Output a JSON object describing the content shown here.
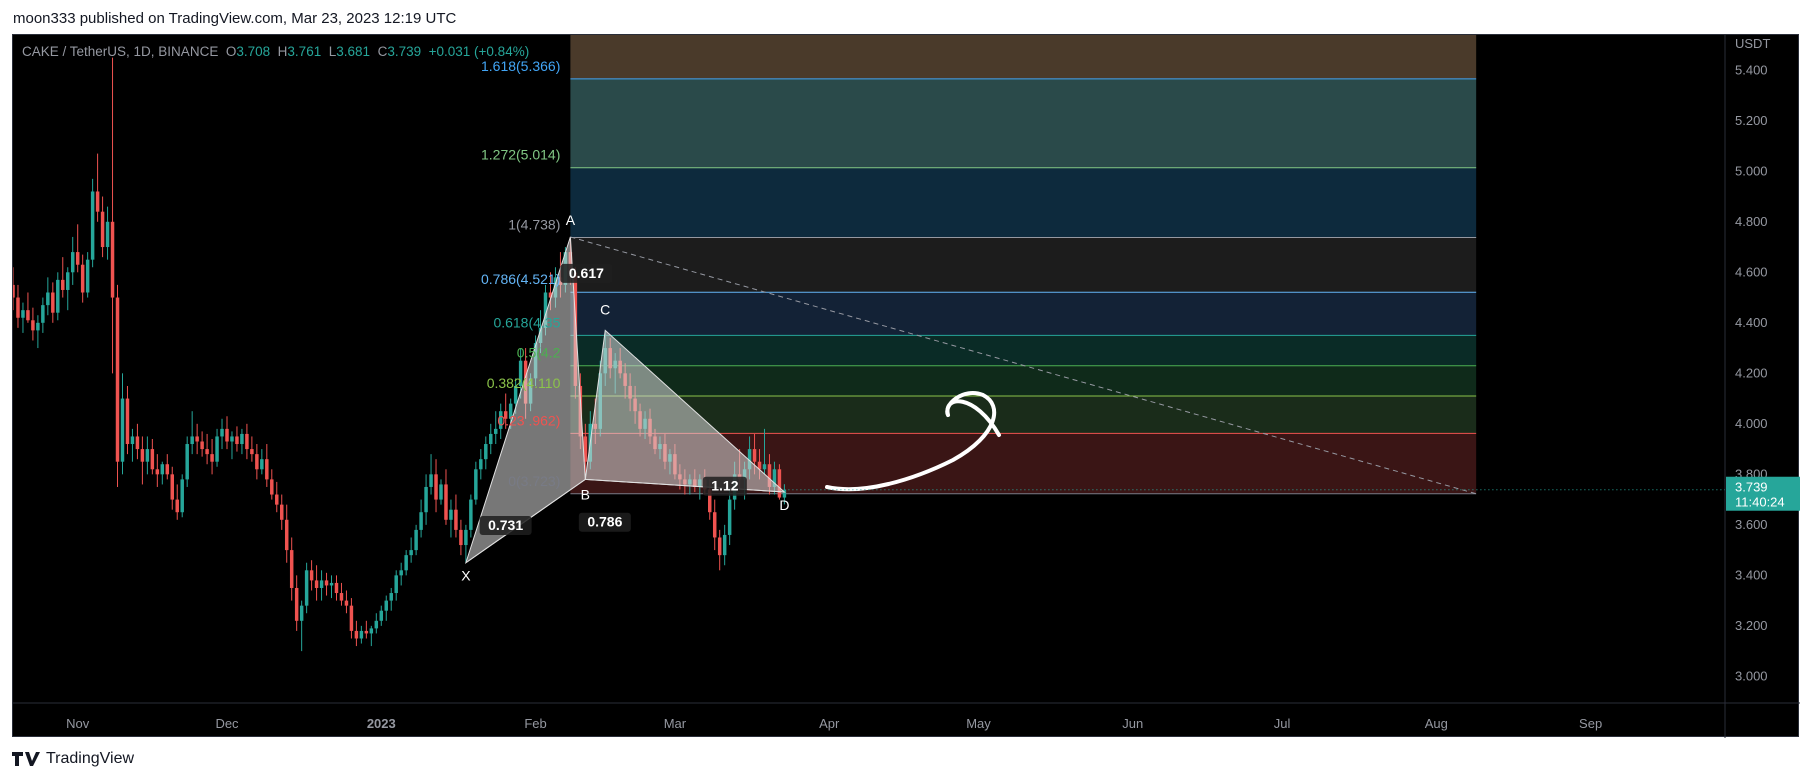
{
  "header": {
    "published": "moon333 published on TradingView.com, Mar 23, 2023 12:19 UTC"
  },
  "footer": {
    "brand": "TradingView"
  },
  "legend": {
    "symbol": "CAKE / TetherUS, 1D, BINANCE",
    "o_label": "O",
    "o": "3.708",
    "h_label": "H",
    "h": "3.761",
    "l_label": "L",
    "l": "3.681",
    "c_label": "C",
    "c": "3.739",
    "change": "+0.031 (+0.84%)"
  },
  "price_axis": {
    "currency": "USDT",
    "ticks": [
      "5.400",
      "5.200",
      "5.000",
      "4.800",
      "4.600",
      "4.400",
      "4.200",
      "4.000",
      "3.800",
      "3.600",
      "3.400",
      "3.200",
      "3.000"
    ],
    "last_price": "3.739",
    "countdown": "11:40:24"
  },
  "time_axis": {
    "ticks": [
      "Nov",
      "Dec",
      "2023",
      "Feb",
      "Mar",
      "Apr",
      "May",
      "Jun",
      "Jul",
      "Aug",
      "Sep"
    ]
  },
  "chart_data": {
    "type": "candlestick",
    "symbol": "CAKE / TetherUS, 1D, BINANCE",
    "ohlc_last": {
      "open": 3.708,
      "high": 3.761,
      "low": 3.681,
      "close": 3.739,
      "change": 0.031,
      "change_pct": 0.84
    },
    "fib_levels": [
      {
        "label": "1.618(5.366)",
        "price": 5.366,
        "color": "#42a5f5"
      },
      {
        "label": "1.272(5.014)",
        "price": 5.014,
        "color": "#81c784"
      },
      {
        "label": "1(4.738)",
        "price": 4.738,
        "color": "#9598a1"
      },
      {
        "label": "0.786(4.521)",
        "price": 4.521,
        "color": "#64b5f6"
      },
      {
        "label": "0.618(4.35",
        "price": 4.35,
        "color": "#26a69a"
      },
      {
        "label": "0.5(4.2",
        "price": 4.23,
        "color": "#4caf50"
      },
      {
        "label": "0.382(4.110",
        "price": 4.11,
        "color": "#8bc34a"
      },
      {
        "label": "0.23 .962)",
        "price": 3.962,
        "color": "#ef5350"
      },
      {
        "label": "0(3.723)",
        "price": 3.723,
        "color": "#787b86"
      }
    ],
    "fib_zone_colors": [
      "#4a3a2a",
      "#2a4a4a",
      "#0d2a3d",
      "#1c1c1c",
      "#132236",
      "#0a2b26",
      "#0f2a1a",
      "#1a2c1a",
      "#3a1515"
    ],
    "harmonic_pattern": {
      "points": [
        {
          "label": "X",
          "date": "2023-01-18",
          "price": 3.45
        },
        {
          "label": "A",
          "date": "2023-02-08",
          "price": 4.74
        },
        {
          "label": "B",
          "date": "2023-02-11",
          "price": 3.78
        },
        {
          "label": "C",
          "date": "2023-02-15",
          "price": 4.37
        },
        {
          "label": "D",
          "date": "2023-03-23",
          "price": 3.73
        }
      ],
      "ratios": [
        "0.731",
        "0.617",
        "0.786",
        "1.12"
      ]
    },
    "trendline": {
      "from": {
        "date": "2023-02-08",
        "price": 4.74
      },
      "to": {
        "date": "2023-08-09",
        "price": 3.723
      }
    },
    "ylim": [
      2.95,
      5.5
    ],
    "x_range": [
      "2022-10-19",
      "2023-09-28"
    ],
    "candles": [
      [
        "2022-10-19",
        4.55,
        4.62,
        4.45,
        4.5
      ],
      [
        "2022-10-20",
        4.5,
        4.55,
        4.38,
        4.42
      ],
      [
        "2022-10-21",
        4.42,
        4.48,
        4.36,
        4.45
      ],
      [
        "2022-10-22",
        4.45,
        4.52,
        4.4,
        4.41
      ],
      [
        "2022-10-23",
        4.41,
        4.46,
        4.33,
        4.37
      ],
      [
        "2022-10-24",
        4.37,
        4.43,
        4.3,
        4.4
      ],
      [
        "2022-10-25",
        4.4,
        4.5,
        4.36,
        4.47
      ],
      [
        "2022-10-26",
        4.47,
        4.58,
        4.43,
        4.52
      ],
      [
        "2022-10-27",
        4.52,
        4.56,
        4.4,
        4.44
      ],
      [
        "2022-10-28",
        4.44,
        4.6,
        4.41,
        4.57
      ],
      [
        "2022-10-29",
        4.57,
        4.66,
        4.5,
        4.53
      ],
      [
        "2022-10-30",
        4.53,
        4.62,
        4.45,
        4.6
      ],
      [
        "2022-10-31",
        4.6,
        4.74,
        4.55,
        4.68
      ],
      [
        "2022-11-01",
        4.68,
        4.79,
        4.6,
        4.63
      ],
      [
        "2022-11-02",
        4.63,
        4.67,
        4.48,
        4.52
      ],
      [
        "2022-11-03",
        4.52,
        4.68,
        4.5,
        4.65
      ],
      [
        "2022-11-04",
        4.65,
        4.97,
        4.62,
        4.92
      ],
      [
        "2022-11-05",
        4.92,
        5.07,
        4.8,
        4.84
      ],
      [
        "2022-11-06",
        4.84,
        4.9,
        4.66,
        4.7
      ],
      [
        "2022-11-07",
        4.7,
        4.86,
        4.65,
        4.8
      ],
      [
        "2022-11-08",
        4.8,
        5.45,
        4.2,
        4.5
      ],
      [
        "2022-11-09",
        4.5,
        4.55,
        3.75,
        3.85
      ],
      [
        "2022-11-10",
        3.85,
        4.2,
        3.8,
        4.1
      ],
      [
        "2022-11-11",
        4.1,
        4.15,
        3.88,
        3.92
      ],
      [
        "2022-11-12",
        3.92,
        3.98,
        3.85,
        3.95
      ],
      [
        "2022-11-13",
        3.95,
        4.0,
        3.86,
        3.9
      ],
      [
        "2022-11-14",
        3.9,
        3.95,
        3.76,
        3.85
      ],
      [
        "2022-11-15",
        3.85,
        3.95,
        3.8,
        3.9
      ],
      [
        "2022-11-16",
        3.9,
        3.94,
        3.8,
        3.82
      ],
      [
        "2022-11-17",
        3.82,
        3.88,
        3.75,
        3.8
      ],
      [
        "2022-11-18",
        3.8,
        3.85,
        3.76,
        3.84
      ],
      [
        "2022-11-19",
        3.84,
        3.88,
        3.78,
        3.8
      ],
      [
        "2022-11-20",
        3.8,
        3.83,
        3.66,
        3.7
      ],
      [
        "2022-11-21",
        3.7,
        3.76,
        3.62,
        3.65
      ],
      [
        "2022-11-22",
        3.65,
        3.8,
        3.63,
        3.78
      ],
      [
        "2022-11-23",
        3.78,
        3.95,
        3.75,
        3.92
      ],
      [
        "2022-11-24",
        3.92,
        4.05,
        3.88,
        3.95
      ],
      [
        "2022-11-25",
        3.95,
        4.0,
        3.88,
        3.93
      ],
      [
        "2022-11-26",
        3.93,
        3.97,
        3.87,
        3.9
      ],
      [
        "2022-11-27",
        3.9,
        3.96,
        3.84,
        3.88
      ],
      [
        "2022-11-28",
        3.88,
        3.94,
        3.8,
        3.85
      ],
      [
        "2022-11-29",
        3.85,
        3.98,
        3.83,
        3.95
      ],
      [
        "2022-11-30",
        3.95,
        4.02,
        3.9,
        3.98
      ],
      [
        "2022-12-01",
        3.98,
        4.03,
        3.9,
        3.93
      ],
      [
        "2022-12-02",
        3.93,
        3.97,
        3.86,
        3.95
      ],
      [
        "2022-12-03",
        3.95,
        3.99,
        3.89,
        3.92
      ],
      [
        "2022-12-04",
        3.92,
        3.98,
        3.88,
        3.96
      ],
      [
        "2022-12-05",
        3.96,
        4.0,
        3.86,
        3.9
      ],
      [
        "2022-12-06",
        3.9,
        3.95,
        3.85,
        3.88
      ],
      [
        "2022-12-07",
        3.88,
        3.92,
        3.78,
        3.82
      ],
      [
        "2022-12-08",
        3.82,
        3.9,
        3.8,
        3.86
      ],
      [
        "2022-12-09",
        3.86,
        3.92,
        3.75,
        3.78
      ],
      [
        "2022-12-10",
        3.78,
        3.82,
        3.7,
        3.72
      ],
      [
        "2022-12-11",
        3.72,
        3.77,
        3.65,
        3.68
      ],
      [
        "2022-12-12",
        3.68,
        3.72,
        3.58,
        3.62
      ],
      [
        "2022-12-13",
        3.62,
        3.68,
        3.45,
        3.5
      ],
      [
        "2022-12-14",
        3.5,
        3.55,
        3.3,
        3.35
      ],
      [
        "2022-12-15",
        3.35,
        3.4,
        3.18,
        3.22
      ],
      [
        "2022-12-16",
        3.22,
        3.3,
        3.1,
        3.28
      ],
      [
        "2022-12-17",
        3.28,
        3.45,
        3.25,
        3.42
      ],
      [
        "2022-12-18",
        3.42,
        3.46,
        3.34,
        3.38
      ],
      [
        "2022-12-19",
        3.38,
        3.44,
        3.3,
        3.35
      ],
      [
        "2022-12-20",
        3.35,
        3.42,
        3.3,
        3.38
      ],
      [
        "2022-12-21",
        3.38,
        3.41,
        3.32,
        3.36
      ],
      [
        "2022-12-22",
        3.36,
        3.4,
        3.31,
        3.37
      ],
      [
        "2022-12-23",
        3.37,
        3.4,
        3.3,
        3.33
      ],
      [
        "2022-12-24",
        3.33,
        3.37,
        3.28,
        3.3
      ],
      [
        "2022-12-25",
        3.3,
        3.34,
        3.25,
        3.28
      ],
      [
        "2022-12-26",
        3.28,
        3.31,
        3.15,
        3.18
      ],
      [
        "2022-12-27",
        3.18,
        3.22,
        3.12,
        3.15
      ],
      [
        "2022-12-28",
        3.15,
        3.2,
        3.13,
        3.18
      ],
      [
        "2022-12-29",
        3.18,
        3.22,
        3.15,
        3.17
      ],
      [
        "2022-12-30",
        3.17,
        3.2,
        3.12,
        3.19
      ],
      [
        "2022-12-31",
        3.19,
        3.25,
        3.17,
        3.22
      ],
      [
        "2023-01-01",
        3.22,
        3.28,
        3.2,
        3.26
      ],
      [
        "2023-01-02",
        3.26,
        3.32,
        3.22,
        3.3
      ],
      [
        "2023-01-03",
        3.3,
        3.35,
        3.26,
        3.33
      ],
      [
        "2023-01-04",
        3.33,
        3.42,
        3.3,
        3.4
      ],
      [
        "2023-01-05",
        3.4,
        3.45,
        3.36,
        3.42
      ],
      [
        "2023-01-06",
        3.42,
        3.5,
        3.4,
        3.48
      ],
      [
        "2023-01-07",
        3.48,
        3.55,
        3.45,
        3.5
      ],
      [
        "2023-01-08",
        3.5,
        3.6,
        3.48,
        3.58
      ],
      [
        "2023-01-09",
        3.58,
        3.7,
        3.55,
        3.65
      ],
      [
        "2023-01-10",
        3.65,
        3.8,
        3.6,
        3.75
      ],
      [
        "2023-01-11",
        3.75,
        3.88,
        3.72,
        3.8
      ],
      [
        "2023-01-12",
        3.8,
        3.86,
        3.65,
        3.7
      ],
      [
        "2023-01-13",
        3.7,
        3.78,
        3.68,
        3.76
      ],
      [
        "2023-01-14",
        3.76,
        3.82,
        3.6,
        3.62
      ],
      [
        "2023-01-15",
        3.62,
        3.7,
        3.55,
        3.66
      ],
      [
        "2023-01-16",
        3.66,
        3.72,
        3.55,
        3.58
      ],
      [
        "2023-01-17",
        3.58,
        3.62,
        3.48,
        3.52
      ],
      [
        "2023-01-18",
        3.52,
        3.6,
        3.45,
        3.58
      ],
      [
        "2023-01-19",
        3.58,
        3.72,
        3.55,
        3.7
      ],
      [
        "2023-01-20",
        3.7,
        3.85,
        3.68,
        3.82
      ],
      [
        "2023-01-21",
        3.82,
        3.9,
        3.78,
        3.86
      ],
      [
        "2023-01-22",
        3.86,
        3.95,
        3.82,
        3.92
      ],
      [
        "2023-01-23",
        3.92,
        4.0,
        3.88,
        3.96
      ],
      [
        "2023-01-24",
        3.96,
        4.05,
        3.92,
        3.98
      ],
      [
        "2023-01-25",
        3.98,
        4.08,
        3.94,
        4.05
      ],
      [
        "2023-01-26",
        4.05,
        4.12,
        3.98,
        4.02
      ],
      [
        "2023-01-27",
        4.02,
        4.1,
        3.98,
        4.08
      ],
      [
        "2023-01-28",
        4.08,
        4.18,
        4.04,
        4.15
      ],
      [
        "2023-01-29",
        4.15,
        4.3,
        4.1,
        4.25
      ],
      [
        "2023-01-30",
        4.25,
        4.3,
        4.02,
        4.08
      ],
      [
        "2023-01-31",
        4.08,
        4.2,
        4.05,
        4.18
      ],
      [
        "2023-02-01",
        4.18,
        4.35,
        4.15,
        4.32
      ],
      [
        "2023-02-02",
        4.32,
        4.45,
        4.28,
        4.38
      ],
      [
        "2023-02-03",
        4.38,
        4.55,
        4.35,
        4.52
      ],
      [
        "2023-02-04",
        4.52,
        4.6,
        4.45,
        4.5
      ],
      [
        "2023-02-05",
        4.5,
        4.62,
        4.46,
        4.58
      ],
      [
        "2023-02-06",
        4.58,
        4.68,
        4.5,
        4.55
      ],
      [
        "2023-02-07",
        4.55,
        4.7,
        4.52,
        4.68
      ],
      [
        "2023-02-08",
        4.68,
        4.74,
        4.55,
        4.6
      ],
      [
        "2023-02-09",
        4.6,
        4.62,
        4.1,
        4.15
      ],
      [
        "2023-02-10",
        4.15,
        4.2,
        3.9,
        3.95
      ],
      [
        "2023-02-11",
        3.95,
        4.0,
        3.78,
        3.85
      ],
      [
        "2023-02-12",
        3.85,
        4.05,
        3.82,
        4.0
      ],
      [
        "2023-02-13",
        4.0,
        4.1,
        3.92,
        3.98
      ],
      [
        "2023-02-14",
        3.98,
        4.25,
        3.95,
        4.2
      ],
      [
        "2023-02-15",
        4.2,
        4.37,
        4.15,
        4.3
      ],
      [
        "2023-02-16",
        4.3,
        4.34,
        4.18,
        4.22
      ],
      [
        "2023-02-17",
        4.22,
        4.28,
        4.12,
        4.25
      ],
      [
        "2023-02-18",
        4.25,
        4.3,
        4.18,
        4.2
      ],
      [
        "2023-02-19",
        4.2,
        4.24,
        4.1,
        4.15
      ],
      [
        "2023-02-20",
        4.15,
        4.2,
        4.05,
        4.1
      ],
      [
        "2023-02-21",
        4.1,
        4.15,
        4.0,
        4.05
      ],
      [
        "2023-02-22",
        4.05,
        4.08,
        3.95,
        3.98
      ],
      [
        "2023-02-23",
        3.98,
        4.05,
        3.94,
        4.02
      ],
      [
        "2023-02-24",
        4.02,
        4.06,
        3.92,
        3.95
      ],
      [
        "2023-02-25",
        3.95,
        3.98,
        3.88,
        3.9
      ],
      [
        "2023-02-26",
        3.9,
        3.95,
        3.86,
        3.92
      ],
      [
        "2023-02-27",
        3.92,
        3.96,
        3.82,
        3.85
      ],
      [
        "2023-02-28",
        3.85,
        3.9,
        3.8,
        3.88
      ],
      [
        "2023-03-01",
        3.88,
        3.92,
        3.78,
        3.8
      ],
      [
        "2023-03-02",
        3.8,
        3.84,
        3.74,
        3.78
      ],
      [
        "2023-03-03",
        3.78,
        3.82,
        3.72,
        3.76
      ],
      [
        "2023-03-04",
        3.76,
        3.8,
        3.72,
        3.78
      ],
      [
        "2023-03-05",
        3.78,
        3.82,
        3.73,
        3.75
      ],
      [
        "2023-03-06",
        3.75,
        3.8,
        3.7,
        3.78
      ],
      [
        "2023-03-07",
        3.78,
        3.82,
        3.72,
        3.74
      ],
      [
        "2023-03-08",
        3.74,
        3.78,
        3.62,
        3.65
      ],
      [
        "2023-03-09",
        3.65,
        3.7,
        3.5,
        3.55
      ],
      [
        "2023-03-10",
        3.55,
        3.58,
        3.42,
        3.48
      ],
      [
        "2023-03-11",
        3.48,
        3.6,
        3.44,
        3.56
      ],
      [
        "2023-03-12",
        3.56,
        3.75,
        3.52,
        3.7
      ],
      [
        "2023-03-13",
        3.7,
        3.85,
        3.66,
        3.8
      ],
      [
        "2023-03-14",
        3.8,
        3.9,
        3.74,
        3.78
      ],
      [
        "2023-03-15",
        3.78,
        3.85,
        3.7,
        3.82
      ],
      [
        "2023-03-16",
        3.82,
        3.95,
        3.78,
        3.9
      ],
      [
        "2023-03-17",
        3.9,
        3.96,
        3.8,
        3.85
      ],
      [
        "2023-03-18",
        3.85,
        3.9,
        3.78,
        3.82
      ],
      [
        "2023-03-19",
        3.82,
        3.98,
        3.8,
        3.84
      ],
      [
        "2023-03-20",
        3.84,
        3.88,
        3.72,
        3.75
      ],
      [
        "2023-03-21",
        3.75,
        3.85,
        3.72,
        3.82
      ],
      [
        "2023-03-22",
        3.82,
        3.84,
        3.7,
        3.708
      ],
      [
        "2023-03-23",
        3.708,
        3.761,
        3.681,
        3.739
      ]
    ]
  },
  "colors": {
    "up": "#26a69a",
    "down": "#ef5350",
    "pattern_fill": "#d8d8d8",
    "trend": "#9598a1",
    "last_price_bg": "#26a69a"
  }
}
